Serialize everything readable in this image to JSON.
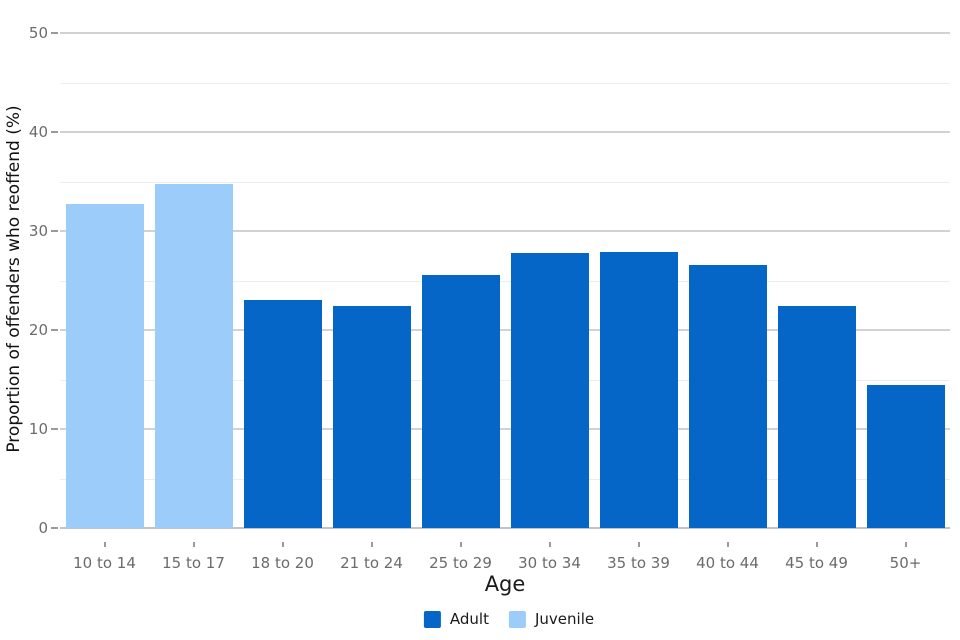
{
  "chart_data": {
    "type": "bar",
    "title": "",
    "xlabel": "Age",
    "ylabel": "Proportion of offenders who reoffend (%)",
    "categories": [
      "10 to 14",
      "15 to 17",
      "18 to 20",
      "21 to 24",
      "25 to 29",
      "30 to 34",
      "35 to 39",
      "40 to 44",
      "45 to 49",
      "50+"
    ],
    "values": [
      32.7,
      34.7,
      23.0,
      22.4,
      25.6,
      27.8,
      27.9,
      26.6,
      22.4,
      14.4
    ],
    "bar_groups": [
      "Juvenile",
      "Juvenile",
      "Adult",
      "Adult",
      "Adult",
      "Adult",
      "Adult",
      "Adult",
      "Adult",
      "Adult"
    ],
    "legend": [
      {
        "label": "Adult",
        "color": "#0566c8"
      },
      {
        "label": "Juvenile",
        "color": "#9bccfa"
      }
    ],
    "legend_position": "bottom-center",
    "ylim": [
      0,
      50
    ],
    "ytick_step": 10,
    "minor_ytick_step": 5,
    "yticks": [
      "0",
      "10",
      "20",
      "30",
      "40",
      "50"
    ],
    "grid": "horizontal, major and minor, no vertical axis line",
    "background_color": "#ffffff"
  }
}
